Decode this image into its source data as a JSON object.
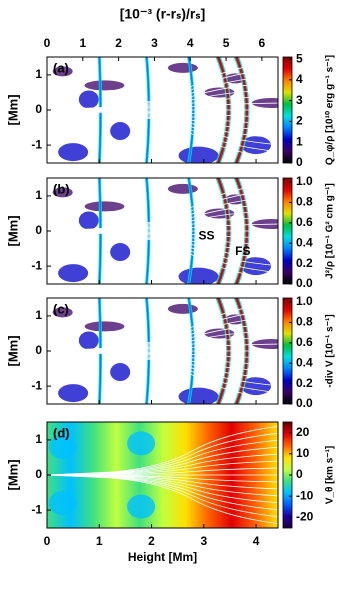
{
  "chart_data": [
    {
      "type": "heatmap",
      "panel_label": "(a)",
      "ylabel": "[Mm]",
      "x2label": "[10⁻³ (r-rₛ)/rₛ]",
      "x2lim": [
        0,
        6.45
      ],
      "x2ticks": [
        0,
        1,
        2,
        3,
        4,
        5,
        6
      ],
      "xlim": [
        0,
        4.42
      ],
      "xticks": [
        0,
        1,
        2,
        3,
        4
      ],
      "ylim": [
        -1.51,
        1.51
      ],
      "yticks": [
        -1,
        0,
        1
      ],
      "colorbar": {
        "label": "Q_φ/ρ [10¹⁰ erg g⁻¹ s⁻¹]",
        "lim": [
          0,
          5.1
        ],
        "ticks": [
          0,
          1,
          2,
          3,
          4,
          5
        ]
      },
      "colormap": [
        "#000000",
        "#3b0066",
        "#0000c8",
        "#0080ff",
        "#00e0e0",
        "#00c040",
        "#e0e000",
        "#ff8000",
        "#e00000",
        "#800000"
      ]
    },
    {
      "type": "heatmap",
      "panel_label": "(b)",
      "ylabel": "[Mm]",
      "annotations": [
        "SS",
        "FS"
      ],
      "xlim": [
        0,
        4.42
      ],
      "xticks": [
        0,
        1,
        2,
        3,
        4
      ],
      "ylim": [
        -1.51,
        1.51
      ],
      "yticks": [
        -1,
        0,
        1
      ],
      "colorbar": {
        "label": "J²/ρ [10⁻¹ G² cm g⁻¹]",
        "lim": [
          0,
          1.04
        ],
        "ticks": [
          {
            "value": 0,
            "label": "0.0"
          },
          0.2,
          0.4,
          0.6,
          0.8,
          {
            "value": 1,
            "label": "1.0"
          }
        ]
      },
      "colormap": [
        "#000000",
        "#3b0066",
        "#0000c8",
        "#0080ff",
        "#00e0e0",
        "#00c040",
        "#e0e000",
        "#ff8000",
        "#e00000",
        "#800000"
      ]
    },
    {
      "type": "heatmap",
      "panel_label": "(c)",
      "ylabel": "[Mm]",
      "xlim": [
        0,
        4.42
      ],
      "xticks": [
        0,
        1,
        2,
        3,
        4
      ],
      "ylim": [
        -1.51,
        1.51
      ],
      "yticks": [
        -1,
        0,
        1
      ],
      "colorbar": {
        "label": "-div V [10⁻¹ s⁻¹]",
        "lim": [
          0,
          1.04
        ],
        "ticks": [
          {
            "value": 0,
            "label": "0.0"
          },
          0.2,
          0.4,
          0.6,
          0.8,
          {
            "value": 1,
            "label": "1.0"
          }
        ]
      },
      "colormap": [
        "#000000",
        "#3b0066",
        "#0000c8",
        "#0080ff",
        "#00e0e0",
        "#00c040",
        "#e0e000",
        "#ff8000",
        "#e00000",
        "#800000"
      ]
    },
    {
      "type": "heatmap",
      "panel_label": "(d)",
      "ylabel": "[Mm]",
      "xlabel": "Height [Mm]",
      "xlim": [
        0,
        4.42
      ],
      "xticks": [
        0,
        1,
        2,
        3,
        4
      ],
      "ylim": [
        -1.51,
        1.51
      ],
      "yticks": [
        -1,
        0,
        1
      ],
      "colorbar": {
        "label": "V_θ [km s⁻¹]",
        "lim": [
          -25,
          25
        ],
        "ticks": [
          -20,
          -10,
          0,
          10,
          20
        ]
      },
      "colormap": [
        "#200040",
        "#2000a0",
        "#0060ff",
        "#00c0ff",
        "#40e080",
        "#c0ff40",
        "#ffe000",
        "#ff6000",
        "#e00000",
        "#600000"
      ]
    }
  ]
}
